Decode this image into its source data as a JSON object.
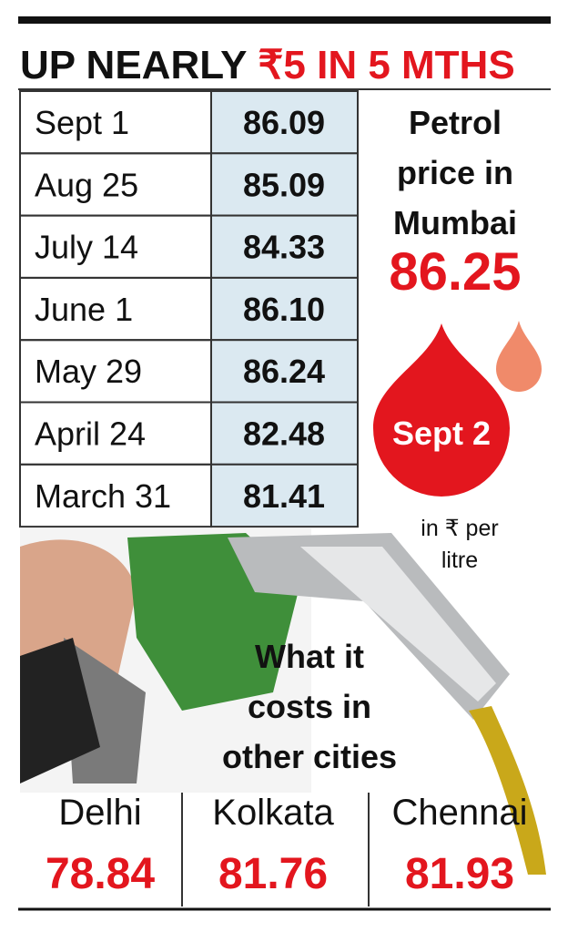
{
  "header": {
    "title_prefix": "UP NEARLY",
    "title_highlight": "₹5 IN 5 MTHS"
  },
  "table": {
    "rows": [
      [
        "Sept 1",
        "86.09"
      ],
      [
        "Aug 25",
        "85.09"
      ],
      [
        "July 14",
        "84.33"
      ],
      [
        "June 1",
        "86.10"
      ],
      [
        "May 29",
        "86.24"
      ],
      [
        "April 24",
        "82.48"
      ],
      [
        "March 31",
        "81.41"
      ]
    ]
  },
  "mumbai": {
    "label_lines": [
      "Petrol",
      "price in",
      "Mumbai"
    ],
    "price": "86.25",
    "date": "Sept 2",
    "unit_lines": [
      "in ₹ per",
      "litre"
    ]
  },
  "other_cities": {
    "heading_lines": [
      "What it",
      "costs in",
      "other cities"
    ],
    "cities": [
      {
        "name": "Delhi",
        "price": "78.84"
      },
      {
        "name": "Kolkata",
        "price": "81.76"
      },
      {
        "name": "Chennai",
        "price": "81.93"
      }
    ]
  }
}
